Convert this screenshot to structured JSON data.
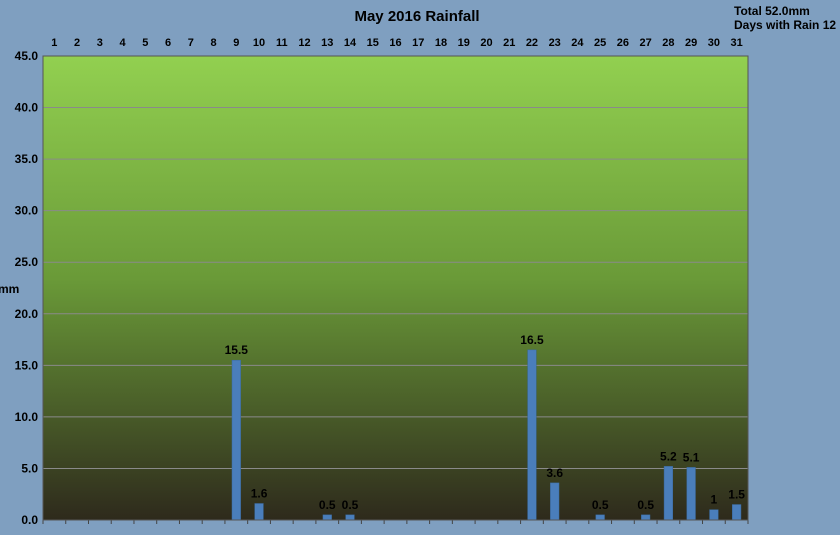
{
  "chart_data": {
    "type": "bar",
    "title": "May 2016 Rainfall",
    "ylabel": "mm",
    "xlabel": "",
    "ylim": [
      0,
      45
    ],
    "yticks": [
      "0.0",
      "5.0",
      "10.0",
      "15.0",
      "20.0",
      "25.0",
      "30.0",
      "35.0",
      "40.0",
      "45.0"
    ],
    "categories": [
      "1",
      "2",
      "3",
      "4",
      "5",
      "6",
      "7",
      "8",
      "9",
      "10",
      "11",
      "12",
      "13",
      "14",
      "15",
      "16",
      "17",
      "18",
      "19",
      "20",
      "21",
      "22",
      "23",
      "24",
      "25",
      "26",
      "27",
      "28",
      "29",
      "30",
      "31"
    ],
    "values": [
      0,
      0,
      0,
      0,
      0,
      0,
      0,
      0,
      15.5,
      1.6,
      0,
      0,
      0.5,
      0.5,
      0,
      0,
      0,
      0,
      0,
      0,
      0,
      16.5,
      3.6,
      0,
      0.5,
      0,
      0.5,
      5.2,
      5.1,
      1,
      1.5
    ],
    "data_labels": [
      "",
      "",
      "",
      "",
      "",
      "",
      "",
      "",
      "15.5",
      "1.6",
      "",
      "",
      "0.5",
      "0.5",
      "",
      "",
      "",
      "",
      "",
      "",
      "",
      "16.5",
      "3.6",
      "",
      "0.5",
      "",
      "0.5",
      "5.2",
      "5.1",
      "1",
      "1.5"
    ],
    "grid": true,
    "x_axis_position": "top",
    "colors": {
      "bar": "#4a7ebb",
      "background": "#7f9fc0",
      "plot_top": "#92d050",
      "plot_bottom": "#2e2a1c",
      "gridline": "#8a8a8a"
    }
  },
  "summary": {
    "total": "Total 52.0mm",
    "days_with_rain": "Days with Rain 12"
  }
}
